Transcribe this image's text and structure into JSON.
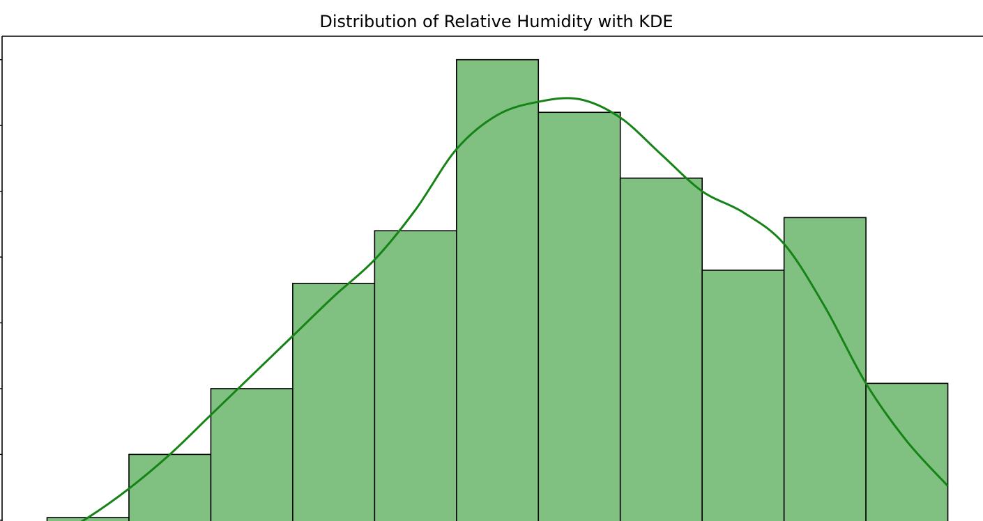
{
  "chart_data": {
    "type": "bar",
    "title": "Distribution of Relative Humidity with KDE",
    "xlabel": "",
    "ylabel": "",
    "bins": [
      {
        "index": 1,
        "value": 2.6
      },
      {
        "index": 2,
        "value": 5.0
      },
      {
        "index": 3,
        "value": 7.5
      },
      {
        "index": 4,
        "value": 11.5
      },
      {
        "index": 5,
        "value": 13.5
      },
      {
        "index": 6,
        "value": 20.0
      },
      {
        "index": 7,
        "value": 18.0
      },
      {
        "index": 8,
        "value": 15.5
      },
      {
        "index": 9,
        "value": 12.0
      },
      {
        "index": 10,
        "value": 14.0
      },
      {
        "index": 11,
        "value": 7.7
      }
    ],
    "kde": [
      {
        "x": 0.5,
        "y": 1.7
      },
      {
        "x": 1.0,
        "y": 2.6
      },
      {
        "x": 1.5,
        "y": 3.7
      },
      {
        "x": 2.0,
        "y": 5.0
      },
      {
        "x": 2.5,
        "y": 6.5
      },
      {
        "x": 3.0,
        "y": 8.0
      },
      {
        "x": 3.5,
        "y": 9.5
      },
      {
        "x": 4.0,
        "y": 11.0
      },
      {
        "x": 4.5,
        "y": 12.4
      },
      {
        "x": 5.0,
        "y": 14.3
      },
      {
        "x": 5.5,
        "y": 16.6
      },
      {
        "x": 6.0,
        "y": 17.9
      },
      {
        "x": 6.5,
        "y": 18.4
      },
      {
        "x": 7.0,
        "y": 18.5
      },
      {
        "x": 7.5,
        "y": 17.8
      },
      {
        "x": 8.0,
        "y": 16.4
      },
      {
        "x": 8.5,
        "y": 15.0
      },
      {
        "x": 9.0,
        "y": 14.2
      },
      {
        "x": 9.5,
        "y": 13.0
      },
      {
        "x": 10.0,
        "y": 10.6
      },
      {
        "x": 10.5,
        "y": 7.7
      },
      {
        "x": 11.0,
        "y": 5.5
      },
      {
        "x": 11.5,
        "y": 3.8
      }
    ],
    "ylim": [
      0,
      21
    ],
    "grid": false,
    "legend": "none",
    "colors": {
      "bar_fill": "#80c080",
      "bar_edge": "#000000",
      "kde_line": "#158315",
      "axes": "#000000"
    }
  }
}
